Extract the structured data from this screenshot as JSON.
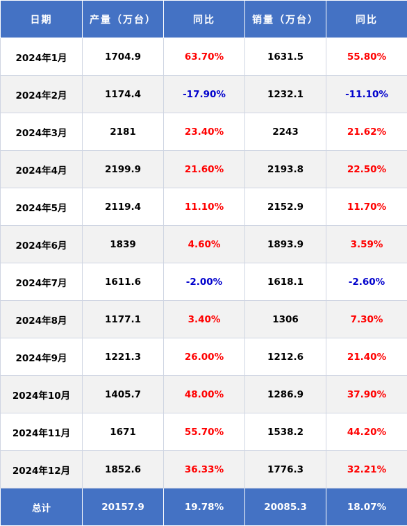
{
  "headers": [
    "日期",
    "产量（万台）",
    "同比",
    "销量（万台）",
    "同比"
  ],
  "rows": [
    {
      "date": "2024年1月",
      "production": "1704.9",
      "prod_yoy": "63.70%",
      "sales": "1631.5",
      "sales_yoy": "55.80%"
    },
    {
      "date": "2024年2月",
      "production": "1174.4",
      "prod_yoy": "-17.90%",
      "sales": "1232.1",
      "sales_yoy": "-11.10%"
    },
    {
      "date": "2024年3月",
      "production": "2181",
      "prod_yoy": "23.40%",
      "sales": "2243",
      "sales_yoy": "21.62%"
    },
    {
      "date": "2024年4月",
      "production": "2199.9",
      "prod_yoy": "21.60%",
      "sales": "2193.8",
      "sales_yoy": "22.50%"
    },
    {
      "date": "2024年5月",
      "production": "2119.4",
      "prod_yoy": "11.10%",
      "sales": "2152.9",
      "sales_yoy": "11.70%"
    },
    {
      "date": "2024年6月",
      "production": "1839",
      "prod_yoy": "4.60%",
      "sales": "1893.9",
      "sales_yoy": "3.59%"
    },
    {
      "date": "2024年7月",
      "production": "1611.6",
      "prod_yoy": "-2.00%",
      "sales": "1618.1",
      "sales_yoy": "-2.60%"
    },
    {
      "date": "2024年8月",
      "production": "1177.1",
      "prod_yoy": "3.40%",
      "sales": "1306",
      "sales_yoy": "7.30%"
    },
    {
      "date": "2024年9月",
      "production": "1221.3",
      "prod_yoy": "26.00%",
      "sales": "1212.6",
      "sales_yoy": "21.40%"
    },
    {
      "date": "2024年10月",
      "production": "1405.7",
      "prod_yoy": "48.00%",
      "sales": "1286.9",
      "sales_yoy": "37.90%"
    },
    {
      "date": "2024年11月",
      "production": "1671",
      "prod_yoy": "55.70%",
      "sales": "1538.2",
      "sales_yoy": "44.20%"
    },
    {
      "date": "2024年12月",
      "production": "1852.6",
      "prod_yoy": "36.33%",
      "sales": "1776.3",
      "sales_yoy": "32.21%"
    }
  ],
  "total": {
    "label": "总计",
    "production": "20157.9",
    "prod_yoy": "19.78%",
    "sales": "20085.3",
    "sales_yoy": "18.07%"
  },
  "colors": {
    "header_bg": "#4472c4",
    "stripe": "#f2f2f2",
    "positive": "#ff0000",
    "negative": "#0000cc"
  }
}
